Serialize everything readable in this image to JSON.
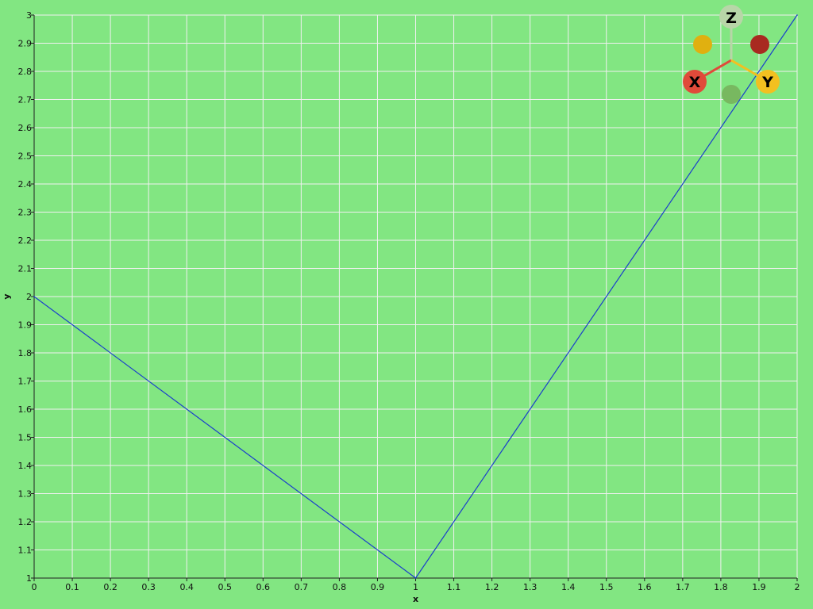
{
  "chart_data": {
    "type": "line",
    "xlabel": "x",
    "ylabel": "y",
    "xlim": [
      0,
      2
    ],
    "ylim": [
      1,
      3
    ],
    "grid": true,
    "x_ticks": [
      "0",
      "0.1",
      "0.2",
      "0.3",
      "0.4",
      "0.5",
      "0.6",
      "0.7",
      "0.8",
      "0.9",
      "1",
      "1.1",
      "1.2",
      "1.3",
      "1.4",
      "1.5",
      "1.6",
      "1.7",
      "1.8",
      "1.9",
      "2"
    ],
    "y_ticks": [
      "1",
      "1.1",
      "1.2",
      "1.3",
      "1.4",
      "1.5",
      "1.6",
      "1.7",
      "1.8",
      "1.9",
      "2",
      "2.1",
      "2.2",
      "2.3",
      "2.4",
      "2.5",
      "2.6",
      "2.7",
      "2.8",
      "2.9",
      "3"
    ],
    "series": [
      {
        "x": [
          0,
          1,
          2
        ],
        "y": [
          2,
          1,
          3
        ],
        "color": "#1a3fcc"
      }
    ]
  },
  "orientation_triad": {
    "labels": {
      "x": "X",
      "y": "Y",
      "z": "Z"
    },
    "colors": {
      "x": "#e04a3a",
      "y": "#f2c020",
      "z": "#b8d6a8",
      "neg_x": "#a82a20",
      "neg_y": "#e0b010",
      "neg_z": "#78b860"
    }
  },
  "colors": {
    "background": "#82e682",
    "grid": "#f0f0f0",
    "axis": "#202020",
    "line": "#1a3fcc"
  }
}
